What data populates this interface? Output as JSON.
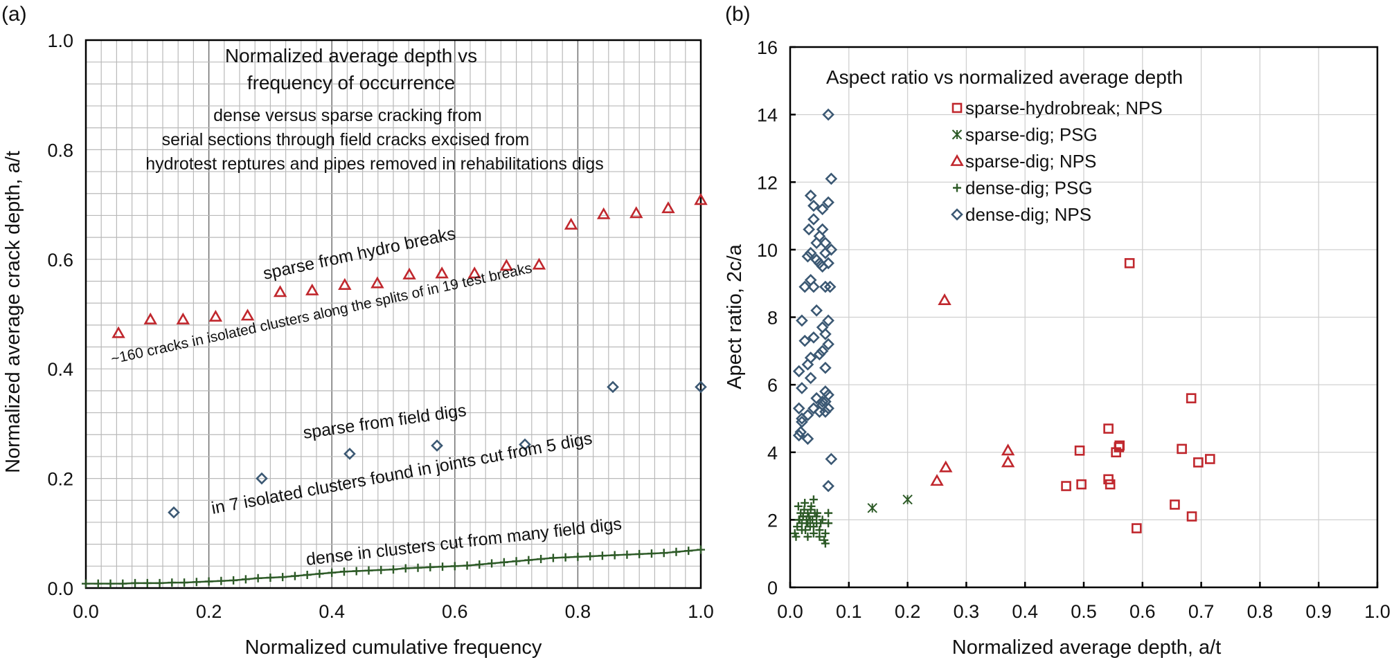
{
  "panel_a": {
    "letter": "(a)",
    "title_line1": "Normalized average depth vs",
    "title_line2": "frequency of occurrence",
    "sub_line1": "dense versus sparse cracking from",
    "sub_line2": "serial sections through field cracks excised from",
    "sub_line3": "hydrotest reptures and pipes removed in rehabilitations digs",
    "annot_sparse_hydro": "sparse from hydro breaks",
    "annot_160": "~160 cracks in isolated clusters along the splits of in 19 test breaks",
    "annot_sparse_field": "sparse from field digs",
    "annot_7clusters": "in 7 isolated clusters found in joints cut from 5 digs",
    "annot_dense": "dense in clusters cut from many field digs"
  },
  "panel_b": {
    "letter": "(b)",
    "title": "Aspect ratio vs normalized average depth"
  },
  "colors": {
    "red": "#c0272d",
    "green": "#2d5a27",
    "blue": "#3b5873"
  },
  "chart_data": [
    {
      "type": "scatter",
      "title": "Normalized average depth vs frequency of occurrence",
      "xlabel": "Normalized cumulative frequency",
      "ylabel": "Normalized average crack depth, a/t",
      "xlim": [
        0.0,
        1.0
      ],
      "ylim": [
        0.0,
        1.0
      ],
      "xticks": [
        "0.0",
        "0.2",
        "0.4",
        "0.6",
        "0.8",
        "1.0"
      ],
      "yticks": [
        "0.0",
        "0.2",
        "0.4",
        "0.6",
        "0.8",
        "1.0"
      ],
      "series": [
        {
          "name": "sparse from hydro breaks",
          "marker": "triangle",
          "x": [
            0.053,
            0.105,
            0.158,
            0.211,
            0.263,
            0.316,
            0.368,
            0.421,
            0.474,
            0.526,
            0.579,
            0.632,
            0.684,
            0.737,
            0.789,
            0.842,
            0.895,
            0.947,
            1.0
          ],
          "y": [
            0.465,
            0.49,
            0.49,
            0.495,
            0.497,
            0.54,
            0.543,
            0.553,
            0.556,
            0.572,
            0.574,
            0.574,
            0.588,
            0.59,
            0.663,
            0.682,
            0.684,
            0.693,
            0.708
          ]
        },
        {
          "name": "sparse from field digs",
          "marker": "diamond",
          "x": [
            0.143,
            0.286,
            0.429,
            0.571,
            0.714,
            0.857,
            1.0
          ],
          "y": [
            0.138,
            0.2,
            0.245,
            0.26,
            0.262,
            0.367,
            0.367
          ]
        },
        {
          "name": "dense in clusters cut from many field digs",
          "marker": "plus",
          "x": [
            0.0,
            0.02,
            0.04,
            0.06,
            0.08,
            0.1,
            0.12,
            0.14,
            0.16,
            0.18,
            0.2,
            0.22,
            0.24,
            0.26,
            0.28,
            0.3,
            0.32,
            0.34,
            0.36,
            0.38,
            0.4,
            0.42,
            0.44,
            0.46,
            0.48,
            0.5,
            0.52,
            0.54,
            0.56,
            0.58,
            0.6,
            0.62,
            0.64,
            0.66,
            0.68,
            0.7,
            0.72,
            0.74,
            0.76,
            0.78,
            0.8,
            0.82,
            0.84,
            0.86,
            0.88,
            0.9,
            0.92,
            0.94,
            0.96,
            0.98,
            1.0
          ],
          "y": [
            0.008,
            0.008,
            0.008,
            0.008,
            0.009,
            0.009,
            0.009,
            0.01,
            0.01,
            0.011,
            0.012,
            0.013,
            0.014,
            0.016,
            0.018,
            0.019,
            0.02,
            0.022,
            0.024,
            0.026,
            0.028,
            0.03,
            0.031,
            0.032,
            0.033,
            0.034,
            0.036,
            0.037,
            0.038,
            0.039,
            0.04,
            0.041,
            0.043,
            0.045,
            0.047,
            0.049,
            0.051,
            0.053,
            0.055,
            0.056,
            0.057,
            0.058,
            0.059,
            0.06,
            0.061,
            0.062,
            0.063,
            0.064,
            0.066,
            0.068,
            0.07
          ]
        }
      ]
    },
    {
      "type": "scatter",
      "title": "Aspect ratio vs normalized average depth",
      "xlabel": "Normalized average depth, a/t",
      "ylabel": "Apect ratio, 2c/a",
      "xlim": [
        0.0,
        1.0
      ],
      "ylim": [
        0,
        16
      ],
      "xticks": [
        "0.0",
        "0.1",
        "0.2",
        "0.3",
        "0.4",
        "0.5",
        "0.6",
        "0.7",
        "0.8",
        "0.9",
        "1.0"
      ],
      "yticks": [
        "0",
        "2",
        "4",
        "6",
        "8",
        "10",
        "12",
        "14",
        "16"
      ],
      "legend_position": "top-center",
      "series": [
        {
          "name": "sparse-hydrobreak; NPS",
          "marker": "square",
          "x": [
            0.578,
            0.683,
            0.542,
            0.493,
            0.561,
            0.667,
            0.715,
            0.695,
            0.555,
            0.56,
            0.542,
            0.47,
            0.496,
            0.545,
            0.655,
            0.684,
            0.59
          ],
          "y": [
            9.6,
            5.6,
            4.7,
            4.05,
            4.2,
            4.1,
            3.8,
            3.7,
            4.0,
            4.15,
            3.2,
            3.0,
            3.05,
            3.05,
            2.45,
            2.1,
            1.75
          ]
        },
        {
          "name": "sparse-dig; PSG",
          "marker": "asterisk",
          "x": [
            0.14,
            0.2
          ],
          "y": [
            2.35,
            2.6
          ]
        },
        {
          "name": "sparse-dig; NPS",
          "marker": "triangle",
          "x": [
            0.263,
            0.265,
            0.371,
            0.371,
            0.25
          ],
          "y": [
            8.5,
            3.55,
            4.05,
            3.7,
            3.15
          ]
        },
        {
          "name": "dense-dig; PSG",
          "marker": "plus",
          "x": [
            0.008,
            0.012,
            0.016,
            0.018,
            0.02,
            0.022,
            0.024,
            0.026,
            0.028,
            0.03,
            0.03,
            0.032,
            0.034,
            0.036,
            0.038,
            0.04,
            0.042,
            0.045,
            0.05,
            0.055,
            0.06,
            0.065,
            0.01,
            0.014,
            0.02,
            0.025,
            0.03,
            0.035,
            0.04,
            0.045,
            0.05,
            0.06,
            0.065,
            0.015,
            0.022,
            0.028,
            0.034,
            0.04,
            0.046,
            0.052,
            0.058
          ],
          "y": [
            1.6,
            1.8,
            2.0,
            2.2,
            1.9,
            2.1,
            2.3,
            1.7,
            2.0,
            2.2,
            1.9,
            2.1,
            1.8,
            2.4,
            2.0,
            2.6,
            2.2,
            1.9,
            1.7,
            2.0,
            1.6,
            2.2,
            1.5,
            2.4,
            1.7,
            2.5,
            1.5,
            2.3,
            1.8,
            2.1,
            1.5,
            1.3,
            1.9,
            2.0,
            2.1,
            1.9,
            2.0,
            1.6,
            2.2,
            1.9,
            1.4
          ]
        },
        {
          "name": "dense-dig; NPS",
          "marker": "diamond",
          "x": [
            0.065,
            0.07,
            0.035,
            0.04,
            0.055,
            0.065,
            0.04,
            0.055,
            0.032,
            0.05,
            0.045,
            0.06,
            0.07,
            0.035,
            0.06,
            0.045,
            0.05,
            0.065,
            0.03,
            0.055,
            0.06,
            0.035,
            0.04,
            0.068,
            0.025,
            0.045,
            0.065,
            0.02,
            0.055,
            0.06,
            0.04,
            0.025,
            0.065,
            0.055,
            0.035,
            0.05,
            0.06,
            0.03,
            0.015,
            0.035,
            0.06,
            0.02,
            0.045,
            0.065,
            0.015,
            0.02,
            0.06,
            0.055,
            0.02,
            0.03,
            0.04,
            0.018,
            0.065,
            0.06,
            0.05,
            0.055,
            0.03,
            0.015,
            0.07,
            0.065
          ],
          "y": [
            14.0,
            12.1,
            11.6,
            11.3,
            11.2,
            11.4,
            10.9,
            10.6,
            10.6,
            10.4,
            10.2,
            10.2,
            10.0,
            9.9,
            9.9,
            9.7,
            9.6,
            9.6,
            9.8,
            9.5,
            8.9,
            9.1,
            8.9,
            8.9,
            8.9,
            8.2,
            7.9,
            7.9,
            7.7,
            7.5,
            7.4,
            7.3,
            7.2,
            7.0,
            6.8,
            6.9,
            6.5,
            6.6,
            6.4,
            6.2,
            5.8,
            5.9,
            5.6,
            5.7,
            5.3,
            5.0,
            5.5,
            5.4,
            4.9,
            5.1,
            5.3,
            4.6,
            5.3,
            5.2,
            5.2,
            5.5,
            4.4,
            4.5,
            3.8,
            3.0
          ]
        }
      ]
    }
  ]
}
